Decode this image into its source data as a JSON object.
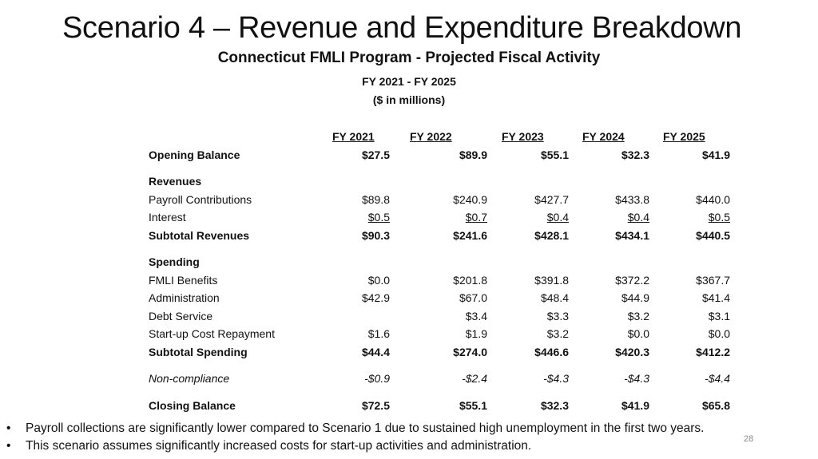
{
  "slide": {
    "title": "Scenario 4 – Revenue and Expenditure Breakdown",
    "subtitle": "Connecticut FMLI Program - Projected Fiscal Activity",
    "years_range": "FY 2021 - FY 2025",
    "units": "($ in millions)",
    "page_number": "28"
  },
  "table": {
    "headers": [
      "FY 2021",
      "FY 2022",
      "FY 2023",
      "FY 2024",
      "FY 2025"
    ],
    "opening_balance": {
      "label": "Opening Balance",
      "values": [
        "$27.5",
        "$89.9",
        "$55.1",
        "$32.3",
        "$41.9"
      ]
    },
    "revenues_heading": "Revenues",
    "payroll_contributions": {
      "label": "Payroll Contributions",
      "values": [
        "$89.8",
        "$240.9",
        "$427.7",
        "$433.8",
        "$440.0"
      ]
    },
    "interest": {
      "label": "Interest",
      "values": [
        "$0.5",
        "$0.7",
        "$0.4",
        "$0.4",
        "$0.5"
      ]
    },
    "subtotal_revenues": {
      "label": "Subtotal Revenues",
      "values": [
        "$90.3",
        "$241.6",
        "$428.1",
        "$434.1",
        "$440.5"
      ]
    },
    "spending_heading": "Spending",
    "fmli_benefits": {
      "label": "FMLI Benefits",
      "values": [
        "$0.0",
        "$201.8",
        "$391.8",
        "$372.2",
        "$367.7"
      ]
    },
    "administration": {
      "label": "Administration",
      "values": [
        "$42.9",
        "$67.0",
        "$48.4",
        "$44.9",
        "$41.4"
      ]
    },
    "debt_service": {
      "label": "Debt Service",
      "values": [
        "",
        "$3.4",
        "$3.3",
        "$3.2",
        "$3.1"
      ]
    },
    "startup_repayment": {
      "label": "Start-up Cost Repayment",
      "values": [
        "$1.6",
        "$1.9",
        "$3.2",
        "$0.0",
        "$0.0"
      ]
    },
    "subtotal_spending": {
      "label": "Subtotal Spending",
      "values": [
        "$44.4",
        "$274.0",
        "$446.6",
        "$420.3",
        "$412.2"
      ]
    },
    "non_compliance": {
      "label": "Non-compliance",
      "values": [
        "-$0.9",
        "-$2.4",
        "-$4.3",
        "-$4.3",
        "-$4.4"
      ]
    },
    "closing_balance": {
      "label": "Closing Balance",
      "values": [
        "$72.5",
        "$55.1",
        "$32.3",
        "$41.9",
        "$65.8"
      ]
    }
  },
  "bullets": {
    "marker": "•",
    "items": [
      "Payroll collections are significantly lower compared to Scenario 1 due to sustained high unemployment in the first two years.",
      "This scenario assumes significantly increased costs for start-up activities and administration."
    ]
  }
}
